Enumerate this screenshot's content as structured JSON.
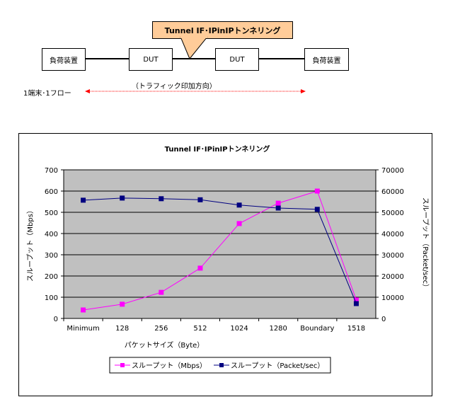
{
  "diagram": {
    "callout": "Tunnel IF･IPinIPトンネリング",
    "left_device": "負荷装置",
    "dut1": "DUT",
    "dut2": "DUT",
    "right_device": "負荷装置",
    "direction": "（トラフィック印加方向）",
    "flow": "1端末･1フロー",
    "callout_color": "#FFCC99",
    "arrow_color": "#FF0000"
  },
  "chart_data": {
    "type": "line",
    "title": "Tunnel IF･IPinIPトンネリング",
    "xlabel": "パケットサイズ（Byte）",
    "ylabel": "スループット（Mbps）",
    "y2label": "スループット（Packet/sec）",
    "categories": [
      "Minimum",
      "128",
      "256",
      "512",
      "1024",
      "1280",
      "Boundary",
      "1518"
    ],
    "ylim": [
      0,
      700
    ],
    "yticks": [
      0,
      100,
      200,
      300,
      400,
      500,
      600,
      700
    ],
    "y2lim": [
      0,
      70000
    ],
    "y2ticks": [
      0,
      10000,
      20000,
      30000,
      40000,
      50000,
      60000,
      70000
    ],
    "grid": true,
    "legend": "bottom",
    "plot_bg": "#C0C0C0",
    "series": [
      {
        "name": "スループット（Mbps）",
        "axis": "left",
        "color": "#FF00FF",
        "values": [
          40,
          67,
          123,
          237,
          447,
          543,
          600,
          87
        ]
      },
      {
        "name": "スループット（Packet/sec）",
        "axis": "right",
        "color": "#000080",
        "values": [
          55700,
          56700,
          56400,
          55900,
          53400,
          52000,
          51400,
          7000
        ]
      }
    ]
  }
}
